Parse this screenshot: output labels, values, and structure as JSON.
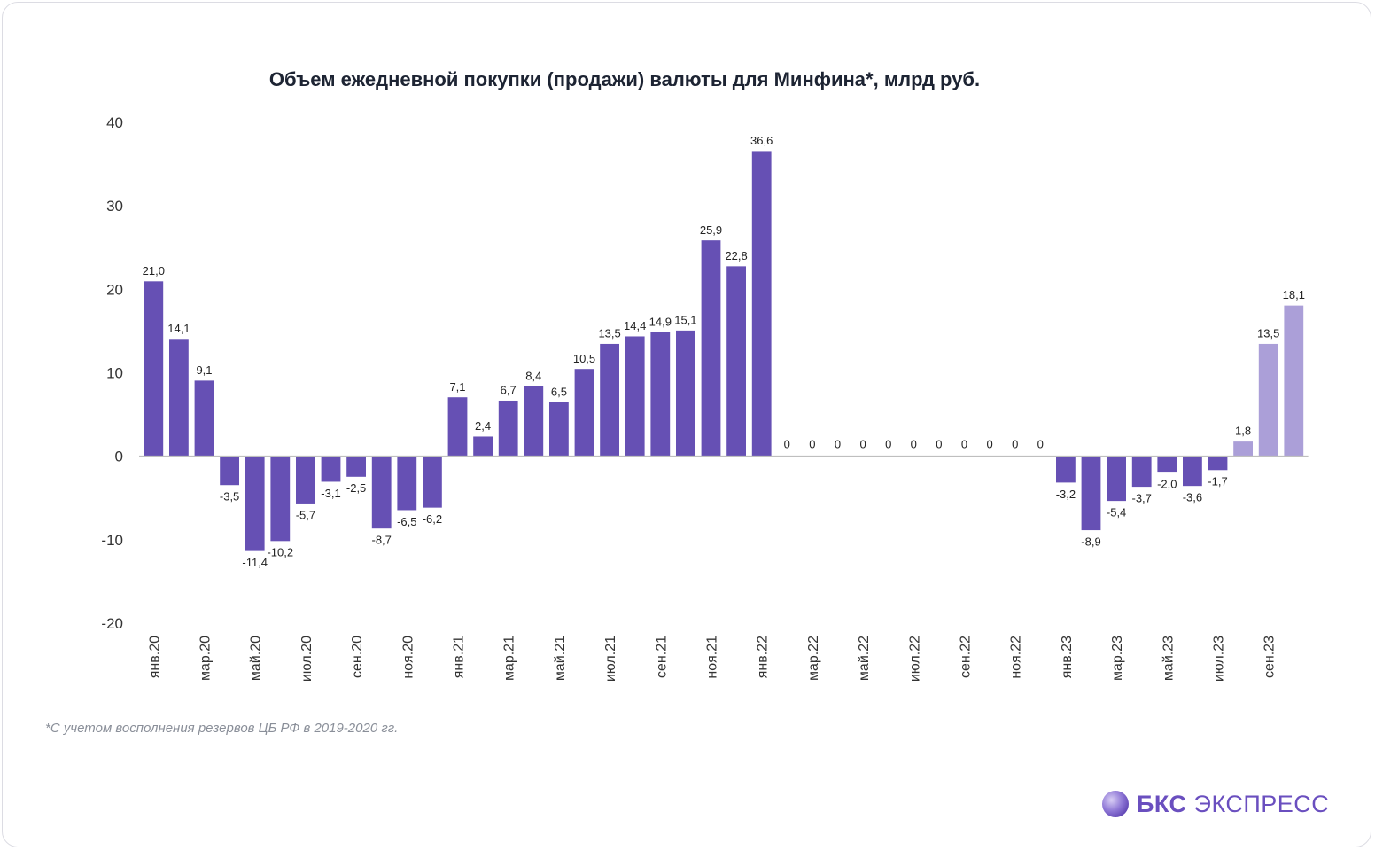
{
  "brand": {
    "name_bold": "БКС",
    "name_regular": "ЭКСПРЕСС",
    "logo_icon": "bks-sphere-logo",
    "accent_color": "#6a4fbf"
  },
  "footnote": "*С учетом восполнения резервов ЦБ РФ в 2019-2020 гг.",
  "chart_data": {
    "type": "bar",
    "title": "Объем ежедневной покупки (продажи) валюты для Минфина*, млрд руб.",
    "xlabel": "",
    "ylabel": "",
    "ylim": [
      -20,
      40
    ],
    "yticks": [
      -20,
      -10,
      0,
      10,
      20,
      30,
      40
    ],
    "grid": false,
    "legend": "none",
    "colors": {
      "main": "#6650b4",
      "highlight": "#ab9fd8",
      "baseline": "#bfbfbf"
    },
    "categories": [
      "янв.20",
      "фев.20",
      "мар.20",
      "апр.20",
      "май.20",
      "июн.20",
      "июл.20",
      "авг.20",
      "сен.20",
      "окт.20",
      "ноя.20",
      "дек.20",
      "янв.21",
      "фев.21",
      "мар.21",
      "апр.21",
      "май.21",
      "июн.21",
      "июл.21",
      "авг.21",
      "сен.21",
      "окт.21",
      "ноя.21",
      "дек.21",
      "янв.22",
      "фев.22",
      "мар.22",
      "апр.22",
      "май.22",
      "июн.22",
      "июл.22",
      "авг.22",
      "сен.22",
      "окт.22",
      "ноя.22",
      "дек.22",
      "янв.23",
      "фев.23",
      "мар.23",
      "апр.23",
      "май.23",
      "июн.23",
      "июл.23",
      "авг.23",
      "сен.23",
      "окт.23"
    ],
    "tick_labels": [
      "янв.20",
      "",
      "мар.20",
      "",
      "май.20",
      "",
      "июл.20",
      "",
      "сен.20",
      "",
      "ноя.20",
      "",
      "янв.21",
      "",
      "мар.21",
      "",
      "май.21",
      "",
      "июл.21",
      "",
      "сен.21",
      "",
      "ноя.21",
      "",
      "янв.22",
      "",
      "мар.22",
      "",
      "май.22",
      "",
      "июл.22",
      "",
      "сен.22",
      "",
      "ноя.22",
      "",
      "янв.23",
      "",
      "мар.23",
      "",
      "май.23",
      "",
      "июл.23",
      "",
      "сен.23",
      ""
    ],
    "values": [
      21.0,
      14.1,
      9.1,
      -3.5,
      -11.4,
      -10.2,
      -5.7,
      -3.1,
      -2.5,
      -8.7,
      -6.5,
      -6.2,
      7.1,
      2.4,
      6.7,
      8.4,
      6.5,
      10.5,
      13.5,
      14.4,
      14.9,
      15.1,
      25.9,
      22.8,
      36.6,
      0,
      0,
      0,
      0,
      0,
      0,
      0,
      0,
      0,
      0,
      0,
      -3.2,
      -8.9,
      -5.4,
      -3.7,
      -2.0,
      -3.6,
      -1.7,
      1.8,
      13.5,
      18.1
    ],
    "value_labels": [
      "21,0",
      "14,1",
      "9,1",
      "-3,5",
      "-11,4",
      "-10,2",
      "-5,7",
      "-3,1",
      "-2,5",
      "-8,7",
      "-6,5",
      "-6,2",
      "7,1",
      "2,4",
      "6,7",
      "8,4",
      "6,5",
      "10,5",
      "13,5",
      "14,4",
      "14,9",
      "15,1",
      "25,9",
      "22,8",
      "36,6",
      "0",
      "0",
      "0",
      "0",
      "0",
      "0",
      "0",
      "0",
      "0",
      "0",
      "0",
      "-3,2",
      "-8,9",
      "-5,4",
      "-3,7",
      "-2,0",
      "-3,6",
      "-1,7",
      "1,8",
      "13,5",
      "18,1"
    ],
    "highlighted_categories": [
      "авг.23",
      "сен.23",
      "окт.23"
    ]
  }
}
